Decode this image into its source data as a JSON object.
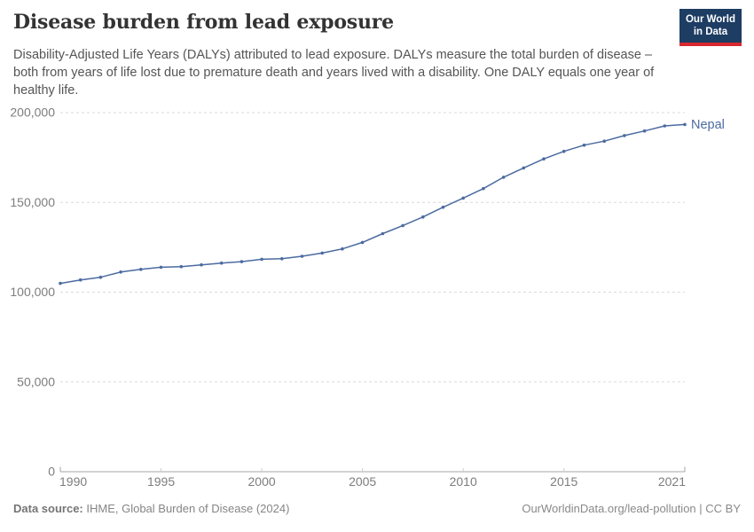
{
  "header": {
    "title": "Disease burden from lead exposure",
    "subtitle": "Disability-Adjusted Life Years (DALYs) attributed to lead exposure. DALYs measure the total burden of disease – both from years of life lost due to premature death and years lived with a disability. One DALY equals one year of healthy life.",
    "logo": {
      "line1": "Our World",
      "line2": "in Data",
      "bg_color": "#1d3d63",
      "accent_color": "#d7282f"
    }
  },
  "chart_data": {
    "type": "line",
    "title": "Disease burden from lead exposure",
    "xlabel": "",
    "ylabel": "",
    "xlim": [
      1990,
      2021
    ],
    "ylim": [
      0,
      200000
    ],
    "grid": "horizontal-dashed",
    "legend_position": "end-of-line-label",
    "x_ticks": [
      1990,
      1995,
      2000,
      2005,
      2010,
      2015,
      2021
    ],
    "y_ticks": [
      0,
      50000,
      100000,
      150000,
      200000
    ],
    "y_tick_labels": [
      "0",
      "50,000",
      "100,000",
      "150,000",
      "200,000"
    ],
    "colors": {
      "line": "#4c6ba0",
      "grid": "#dadada",
      "axis": "#a6a6a6",
      "minor_tick": "#cccccc",
      "tick_text": "#7d7d7d"
    },
    "series": [
      {
        "name": "Nepal",
        "x": [
          1990,
          1991,
          1992,
          1993,
          1994,
          1995,
          1996,
          1997,
          1998,
          1999,
          2000,
          2001,
          2002,
          2003,
          2004,
          2005,
          2006,
          2007,
          2008,
          2009,
          2010,
          2011,
          2012,
          2013,
          2014,
          2015,
          2016,
          2017,
          2018,
          2019,
          2020,
          2021
        ],
        "values": [
          104900,
          106800,
          108300,
          111200,
          112700,
          113900,
          114200,
          115200,
          116200,
          117000,
          118300,
          118600,
          120000,
          121800,
          124100,
          127700,
          132600,
          137100,
          141900,
          147300,
          152400,
          157700,
          164000,
          169200,
          174200,
          178400,
          181900,
          184100,
          187200,
          189800,
          192600,
          193400
        ]
      }
    ]
  },
  "footer": {
    "source_label": "Data source:",
    "source_text": " IHME, Global Burden of Disease (2024)",
    "link_text": "OurWorldinData.org/lead-pollution",
    "separator": " | ",
    "license_text": "CC BY"
  }
}
